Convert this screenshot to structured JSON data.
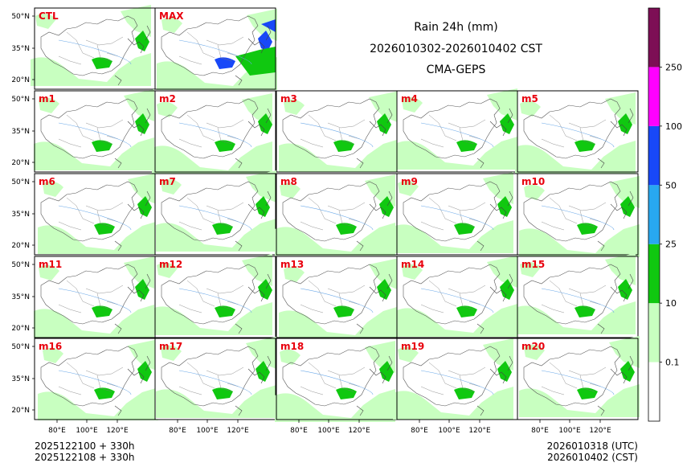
{
  "figure": {
    "title_lines": [
      "Rain 24h (mm)",
      "2026010302-2026010402 CST",
      "CMA-GEPS"
    ],
    "footer_left": [
      "2025122100 + 330h",
      "2025122108 + 330h"
    ],
    "footer_right": [
      "2026010318 (UTC)",
      "2026010402 (CST)"
    ]
  },
  "map": {
    "lat_ticks": [
      "50°N",
      "35°N",
      "20°N"
    ],
    "lon_ticks": [
      "80°E",
      "100°E",
      "120°E"
    ],
    "panels": [
      {
        "label": "CTL"
      },
      {
        "label": "MAX"
      },
      {
        "label": "m1"
      },
      {
        "label": "m2"
      },
      {
        "label": "m3"
      },
      {
        "label": "m4"
      },
      {
        "label": "m5"
      },
      {
        "label": "m6"
      },
      {
        "label": "m7"
      },
      {
        "label": "m8"
      },
      {
        "label": "m9"
      },
      {
        "label": "m10"
      },
      {
        "label": "m11"
      },
      {
        "label": "m12"
      },
      {
        "label": "m13"
      },
      {
        "label": "m14"
      },
      {
        "label": "m15"
      },
      {
        "label": "m16"
      },
      {
        "label": "m17"
      },
      {
        "label": "m18"
      },
      {
        "label": "m19"
      },
      {
        "label": "m20"
      }
    ]
  },
  "colorbar": {
    "tick_labels": [
      "0.1",
      "10",
      "25",
      "50",
      "100",
      "250"
    ],
    "colors": [
      "#ffffff",
      "#c8ffc0",
      "#10c810",
      "#28a8f0",
      "#1848f8",
      "#ff00ff",
      "#7d0e55"
    ]
  },
  "colors": {
    "label": "#e8000d",
    "land": "#ffffff",
    "light_rain": "#c8ffc0",
    "moderate_rain": "#10c810",
    "heavy_rain": "#28a8f0",
    "rainstorm": "#1848f8"
  }
}
